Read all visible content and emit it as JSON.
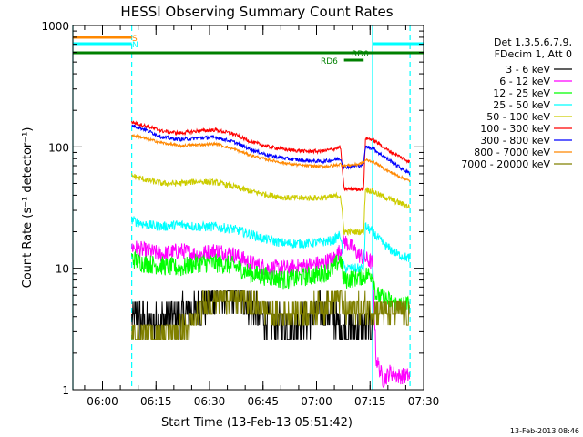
{
  "chart_data": {
    "type": "line",
    "title": "HESSI Observing Summary Count Rates",
    "xlabel": "Start Time (13-Feb-13 05:51:42)",
    "ylabel": "Count Rate (s⁻¹ detector⁻¹)",
    "yscale": "log",
    "ylim": [
      1,
      1000
    ],
    "xlim_minutes": [
      0,
      98.3
    ],
    "y_ticks": [
      "1",
      "10",
      "100",
      "1000"
    ],
    "x_ticks": [
      {
        "label": "06:00",
        "min": 8.3
      },
      {
        "label": "06:15",
        "min": 23.3
      },
      {
        "label": "06:30",
        "min": 38.3
      },
      {
        "label": "06:45",
        "min": 53.3
      },
      {
        "label": "07:00",
        "min": 68.3
      },
      {
        "label": "07:15",
        "min": 83.3
      },
      {
        "label": "07:30",
        "min": 98.3
      }
    ],
    "legend_header": [
      "Det 1,3,5,6,7,9,",
      "FDecim 1, Att 0"
    ],
    "series": [
      {
        "name": "3 - 6 keV",
        "color": "#000000",
        "points": [
          [
            16.5,
            4.0
          ],
          [
            22,
            3.5
          ],
          [
            30,
            4.0
          ],
          [
            35,
            4.5
          ],
          [
            40,
            6.0
          ],
          [
            45,
            6.2
          ],
          [
            48,
            5.5
          ],
          [
            52,
            4.0
          ],
          [
            57,
            3.3
          ],
          [
            62,
            3.5
          ],
          [
            67,
            4.0
          ],
          [
            72,
            4.5
          ],
          [
            76,
            3.0
          ],
          [
            80,
            3.2
          ],
          [
            84,
            3.5
          ]
        ]
      },
      {
        "name": "6 - 12 keV",
        "color": "#ff00ff",
        "points": [
          [
            16.5,
            15
          ],
          [
            20,
            14
          ],
          [
            25,
            13
          ],
          [
            30,
            14
          ],
          [
            35,
            13
          ],
          [
            40,
            14
          ],
          [
            45,
            13
          ],
          [
            50,
            11
          ],
          [
            55,
            10
          ],
          [
            60,
            10
          ],
          [
            65,
            10.5
          ],
          [
            70,
            11
          ],
          [
            73,
            12
          ],
          [
            75,
            14
          ],
          [
            76,
            17
          ],
          [
            78,
            15
          ],
          [
            80,
            13
          ],
          [
            82,
            12
          ],
          [
            84,
            11
          ],
          [
            85,
            1.8
          ],
          [
            87,
            1.2
          ],
          [
            89,
            1.4
          ],
          [
            91,
            1.3
          ],
          [
            94.5,
            1.3
          ]
        ]
      },
      {
        "name": "12 - 25 keV",
        "color": "#00ff00",
        "points": [
          [
            16.5,
            12
          ],
          [
            20,
            11
          ],
          [
            25,
            10.5
          ],
          [
            30,
            10
          ],
          [
            35,
            11
          ],
          [
            40,
            11
          ],
          [
            45,
            10.5
          ],
          [
            50,
            9
          ],
          [
            55,
            8.5
          ],
          [
            60,
            8
          ],
          [
            65,
            8.5
          ],
          [
            70,
            9
          ],
          [
            73,
            10
          ],
          [
            75,
            12
          ],
          [
            76,
            8
          ],
          [
            80,
            8.5
          ],
          [
            84,
            9
          ],
          [
            85,
            6
          ],
          [
            88,
            5.5
          ],
          [
            91,
            5
          ],
          [
            94.5,
            5
          ]
        ]
      },
      {
        "name": "25 - 50 keV",
        "color": "#00ffff",
        "points": [
          [
            16.5,
            25
          ],
          [
            20,
            23
          ],
          [
            25,
            22
          ],
          [
            30,
            23
          ],
          [
            35,
            22
          ],
          [
            40,
            22
          ],
          [
            45,
            21
          ],
          [
            50,
            19
          ],
          [
            55,
            17
          ],
          [
            60,
            16
          ],
          [
            65,
            16
          ],
          [
            70,
            16.5
          ],
          [
            73,
            17
          ],
          [
            75,
            19
          ],
          [
            76,
            10
          ],
          [
            78,
            10
          ],
          [
            80,
            10
          ],
          [
            81.5,
            10
          ],
          [
            82,
            22
          ],
          [
            84,
            20
          ],
          [
            86,
            17
          ],
          [
            88,
            15
          ],
          [
            91,
            13
          ],
          [
            94.5,
            12
          ]
        ]
      },
      {
        "name": "50 - 100 keV",
        "color": "#cccc00",
        "points": [
          [
            16.5,
            58
          ],
          [
            20,
            54
          ],
          [
            25,
            50
          ],
          [
            30,
            50
          ],
          [
            35,
            52
          ],
          [
            40,
            51
          ],
          [
            45,
            47
          ],
          [
            50,
            43
          ],
          [
            55,
            40
          ],
          [
            60,
            38
          ],
          [
            65,
            38
          ],
          [
            70,
            38
          ],
          [
            73,
            39
          ],
          [
            75,
            40
          ],
          [
            76,
            20
          ],
          [
            80,
            20
          ],
          [
            81.5,
            20
          ],
          [
            82,
            45
          ],
          [
            84,
            43
          ],
          [
            86,
            40
          ],
          [
            88,
            38
          ],
          [
            91,
            35
          ],
          [
            94.5,
            32
          ]
        ]
      },
      {
        "name": "100 - 300 keV",
        "color": "#ff0000",
        "points": [
          [
            16.5,
            160
          ],
          [
            20,
            150
          ],
          [
            25,
            135
          ],
          [
            30,
            130
          ],
          [
            35,
            135
          ],
          [
            40,
            138
          ],
          [
            45,
            128
          ],
          [
            50,
            110
          ],
          [
            55,
            100
          ],
          [
            60,
            95
          ],
          [
            65,
            92
          ],
          [
            70,
            92
          ],
          [
            73,
            96
          ],
          [
            75,
            100
          ],
          [
            76,
            45
          ],
          [
            78,
            45
          ],
          [
            80,
            45
          ],
          [
            81.5,
            45
          ],
          [
            82,
            118
          ],
          [
            84,
            115
          ],
          [
            86,
            105
          ],
          [
            88,
            95
          ],
          [
            91,
            85
          ],
          [
            94.5,
            75
          ]
        ]
      },
      {
        "name": "300 - 800 keV",
        "color": "#0000ff",
        "points": [
          [
            16.5,
            150
          ],
          [
            20,
            140
          ],
          [
            25,
            120
          ],
          [
            30,
            115
          ],
          [
            35,
            118
          ],
          [
            40,
            120
          ],
          [
            45,
            110
          ],
          [
            50,
            95
          ],
          [
            55,
            85
          ],
          [
            60,
            80
          ],
          [
            65,
            77
          ],
          [
            70,
            76
          ],
          [
            73,
            78
          ],
          [
            75,
            80
          ],
          [
            76,
            68
          ],
          [
            80,
            70
          ],
          [
            81.5,
            72
          ],
          [
            82,
            100
          ],
          [
            84,
            98
          ],
          [
            86,
            88
          ],
          [
            88,
            80
          ],
          [
            91,
            70
          ],
          [
            94.5,
            60
          ]
        ]
      },
      {
        "name": "800 - 7000 keV",
        "color": "#ff8800",
        "points": [
          [
            16.5,
            125
          ],
          [
            20,
            118
          ],
          [
            25,
            108
          ],
          [
            30,
            102
          ],
          [
            35,
            104
          ],
          [
            40,
            106
          ],
          [
            45,
            96
          ],
          [
            50,
            85
          ],
          [
            55,
            78
          ],
          [
            60,
            73
          ],
          [
            65,
            70
          ],
          [
            70,
            69
          ],
          [
            73,
            70
          ],
          [
            75,
            72
          ],
          [
            76,
            70
          ],
          [
            80,
            72
          ],
          [
            81.5,
            74
          ],
          [
            82,
            78
          ],
          [
            84,
            76
          ],
          [
            86,
            70
          ],
          [
            88,
            64
          ],
          [
            91,
            58
          ],
          [
            94.5,
            52
          ]
        ]
      },
      {
        "name": "7000 - 20000 keV",
        "color": "#808000",
        "points": [
          [
            16.5,
            2.8
          ],
          [
            22,
            2.8
          ],
          [
            28,
            2.9
          ],
          [
            33,
            3.2
          ],
          [
            35,
            4.0
          ],
          [
            37,
            5.0
          ],
          [
            39,
            5.5
          ],
          [
            42,
            6.0
          ],
          [
            45,
            5.8
          ],
          [
            48,
            5.5
          ],
          [
            52,
            4.8
          ],
          [
            57,
            4.0
          ],
          [
            62,
            4.3
          ],
          [
            67,
            4.5
          ],
          [
            72,
            5.0
          ],
          [
            75,
            6.0
          ],
          [
            76,
            4.5
          ],
          [
            80,
            4.5
          ],
          [
            84,
            4.8
          ],
          [
            86,
            4.5
          ],
          [
            90,
            4.4
          ],
          [
            94.5,
            4.3
          ]
        ]
      }
    ],
    "annotations": [
      {
        "text": "S",
        "color": "#ff8800"
      },
      {
        "text": "N",
        "color": "#00ffff"
      },
      {
        "text": "RD0",
        "color": "#008000"
      },
      {
        "text": "RD6",
        "color": "#008000"
      }
    ],
    "colors": {
      "night": "#00ffff",
      "saa": "#ff8800",
      "attenuator": "#008000"
    }
  },
  "footer_timestamp": "13-Feb-2013 08:46"
}
